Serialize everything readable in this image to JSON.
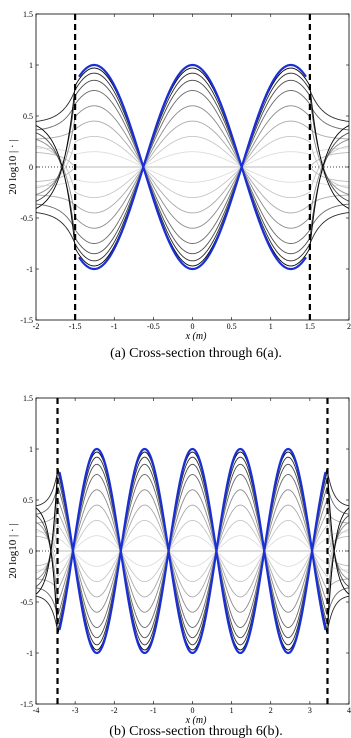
{
  "chart_data": [
    {
      "type": "line",
      "caption": "(a)  Cross-section through 6(a).",
      "ylabel": "20 log10 | · |",
      "xlabel": "x (m)",
      "xlim": [
        -2,
        2
      ],
      "ylim": [
        -1.5,
        1.5
      ],
      "xticks": [
        "-2",
        "-1.5",
        "-1",
        "-0.5",
        "0",
        "0.5",
        "1",
        "1.5",
        "2"
      ],
      "yticks": [
        "-1.5",
        "-1",
        "-0.5",
        "0",
        "0.5",
        "1",
        "1.5"
      ],
      "dashed_vlines_x": [
        -1.5,
        1.5
      ],
      "reference_dotted_y": 0,
      "envelope_wavenumber": 2.5,
      "envelope_series": {
        "name": "",
        "color": "#1a2fd6",
        "x_range": [
          -1.45,
          1.45
        ],
        "abs_amplitude": 1.0
      },
      "family_amplitudes": [
        0.0,
        0.15,
        0.3,
        0.45,
        0.6,
        0.75,
        0.85,
        0.92,
        0.97
      ],
      "family_colors": [
        "#bbbbbb",
        "#dddddd",
        "#c7c7c7",
        "#aaaaaa",
        "#8a8a8a",
        "#6a6a6a",
        "#4a4a4a",
        "#2a2a2a",
        "#000000"
      ]
    },
    {
      "type": "line",
      "caption": "(b)  Cross-section through 6(b).",
      "ylabel": "20 log10 | · |",
      "xlabel": "x (m)",
      "xlim": [
        -4,
        4
      ],
      "ylim": [
        -1.5,
        1.5
      ],
      "xticks": [
        "-4",
        "-3",
        "-2",
        "-1",
        "0",
        "1",
        "2",
        "3",
        "4"
      ],
      "yticks": [
        "-1.5",
        "-1",
        "-0.5",
        "0",
        "0.5",
        "1",
        "1.5"
      ],
      "dashed_vlines_x": [
        -3.45,
        3.45
      ],
      "reference_dotted_y": 0,
      "envelope_wavenumber": 2.57,
      "envelope_series": {
        "name": "",
        "color": "#1a2fd6",
        "x_range": [
          -3.4,
          3.4
        ],
        "abs_amplitude": 1.0
      },
      "family_amplitudes": [
        0.0,
        0.15,
        0.3,
        0.45,
        0.6,
        0.75,
        0.85,
        0.92,
        0.97
      ],
      "family_colors": [
        "#bbbbbb",
        "#dddddd",
        "#c7c7c7",
        "#aaaaaa",
        "#8a8a8a",
        "#6a6a6a",
        "#4a4a4a",
        "#2a2a2a",
        "#000000"
      ]
    }
  ]
}
